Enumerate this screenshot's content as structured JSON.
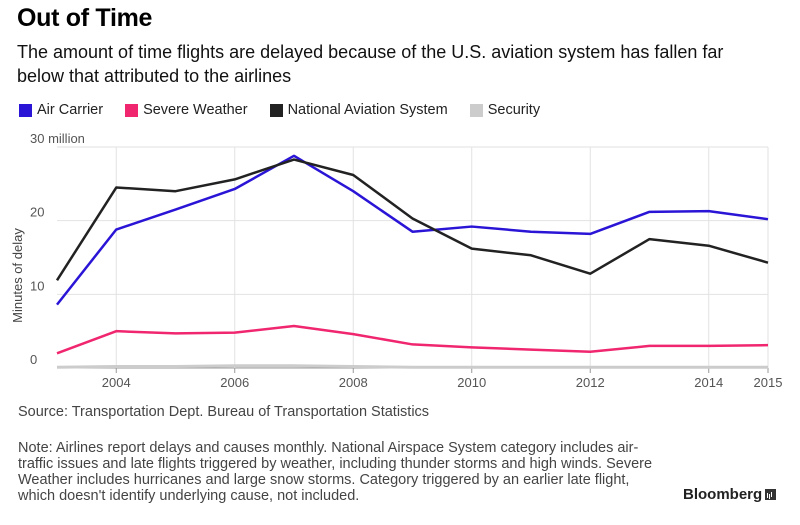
{
  "header": {
    "title": "Out of Time",
    "subtitle": "The amount of time flights are delayed because of the U.S. aviation system has fallen far below that attributed to the airlines"
  },
  "legend": [
    {
      "label": "Air Carrier",
      "color": "#2a14d6"
    },
    {
      "label": "Severe Weather",
      "color": "#f0266f"
    },
    {
      "label": "National Aviation System",
      "color": "#222222"
    },
    {
      "label": "Security",
      "color": "#cccccc"
    }
  ],
  "footer": {
    "source": "Source: Transportation Dept. Bureau of Transportation Statistics",
    "note": "Note: Airlines report delays and causes monthly. National Airspace System category includes air-traffic issues and late flights triggered by weather, including thunder storms and high winds. Severe Weather includes hurricanes and large snow storms. Category triggered by an earlier late flight, which doesn't identify underlying cause, not included.",
    "brand": "Bloomberg"
  },
  "chart_data": {
    "type": "line",
    "title": "Out of Time",
    "ylabel": "Minutes of delay",
    "xlabel": "",
    "x": [
      2003,
      2004,
      2005,
      2006,
      2007,
      2008,
      2009,
      2010,
      2011,
      2012,
      2013,
      2014,
      2015
    ],
    "xlim": [
      2003,
      2015
    ],
    "ylim": [
      0,
      30
    ],
    "x_ticks": [
      "2004",
      "2006",
      "2008",
      "2010",
      "2012",
      "2014",
      "2015"
    ],
    "x_tick_values": [
      2004,
      2006,
      2008,
      2010,
      2012,
      2014,
      2015
    ],
    "y_ticks": [
      "0",
      "10",
      "20",
      "30 million"
    ],
    "y_tick_values": [
      0,
      10,
      20,
      30
    ],
    "grid": true,
    "legend_position": "top-left",
    "series": [
      {
        "name": "Air Carrier",
        "color": "#2a14d6",
        "values": [
          8.6,
          18.8,
          21.5,
          24.3,
          28.8,
          24.0,
          18.5,
          19.2,
          18.5,
          18.2,
          21.2,
          21.3,
          20.2
        ]
      },
      {
        "name": "Severe Weather",
        "color": "#f0266f",
        "values": [
          2.0,
          5.0,
          4.7,
          4.8,
          5.7,
          4.6,
          3.2,
          2.8,
          2.5,
          2.2,
          3.0,
          3.0,
          3.1
        ]
      },
      {
        "name": "National Aviation System",
        "color": "#222222",
        "values": [
          11.9,
          24.5,
          24.0,
          25.6,
          28.3,
          26.2,
          20.3,
          16.2,
          15.3,
          12.8,
          17.5,
          16.6,
          14.3
        ]
      },
      {
        "name": "Security",
        "color": "#cccccc",
        "values": [
          0.1,
          0.2,
          0.2,
          0.3,
          0.3,
          0.2,
          0.1,
          0.1,
          0.1,
          0.1,
          0.1,
          0.1,
          0.1
        ]
      }
    ]
  }
}
